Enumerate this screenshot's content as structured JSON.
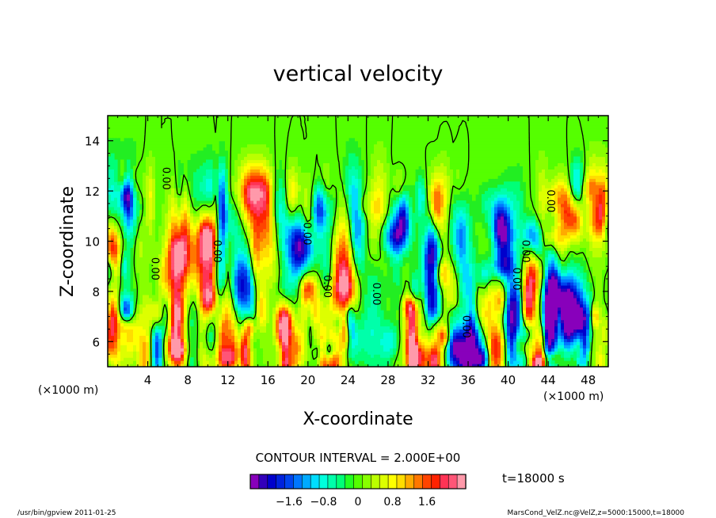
{
  "chart_data": {
    "type": "heatmap",
    "title": "vertical velocity",
    "xlabel": "X-coordinate",
    "ylabel": "Z-coordinate",
    "x_unit": "(×1000 m)",
    "y_unit": "(×1000 m)",
    "xlim": [
      0,
      50
    ],
    "ylim": [
      5,
      15
    ],
    "x_ticks": [
      4,
      8,
      12,
      16,
      20,
      24,
      28,
      32,
      36,
      40,
      44,
      48
    ],
    "y_ticks": [
      6,
      8,
      10,
      12,
      14
    ],
    "contour_interval_text": "CONTOUR INTERVAL = 2.000E+00",
    "time_text": "t=18000 s",
    "contour_labels": [
      {
        "text": "0.00",
        "x": 5.5,
        "y": 12.5,
        "rot": 90
      },
      {
        "text": "0.00",
        "x": 4.4,
        "y": 8.9,
        "rot": 90
      },
      {
        "text": "0.00",
        "x": 10.6,
        "y": 9.6,
        "rot": 90
      },
      {
        "text": "0.00",
        "x": 19.6,
        "y": 10.3,
        "rot": 90
      },
      {
        "text": "0.00",
        "x": 21.6,
        "y": 8.2,
        "rot": 90
      },
      {
        "text": "0.00",
        "x": 26.5,
        "y": 7.9,
        "rot": 90
      },
      {
        "text": "0.00",
        "x": 35.5,
        "y": 6.6,
        "rot": 90
      },
      {
        "text": "0.00",
        "x": 40.5,
        "y": 8.5,
        "rot": 90
      },
      {
        "text": "0.00",
        "x": 41.4,
        "y": 9.6,
        "rot": 90
      },
      {
        "text": "0.00",
        "x": 43.9,
        "y": 11.6,
        "rot": 90
      }
    ],
    "colorbar": {
      "colors": [
        "#8800bb",
        "#3300bb",
        "#0000cc",
        "#0022dd",
        "#0044ee",
        "#0077ff",
        "#00aaff",
        "#00ddff",
        "#00ffdd",
        "#00ffaa",
        "#00ff77",
        "#22ff22",
        "#55ff00",
        "#88ff00",
        "#bbff00",
        "#ddff00",
        "#ffff00",
        "#ffdd00",
        "#ffaa00",
        "#ff7700",
        "#ff4400",
        "#ff2200",
        "#ff3355",
        "#ff5577",
        "#ff99aa"
      ],
      "tick_labels": [
        "−1.6",
        "−0.8",
        "0",
        "0.8",
        "1.6"
      ],
      "tick_values": [
        -1.6,
        -0.8,
        0,
        0.8,
        1.6
      ],
      "range": [
        -2.5,
        2.5
      ]
    }
  },
  "footer": {
    "left": "/usr/bin/gpview  2011-01-25",
    "right": "MarsCond_VelZ.nc@VelZ,z=5000:15000,t=18000"
  }
}
